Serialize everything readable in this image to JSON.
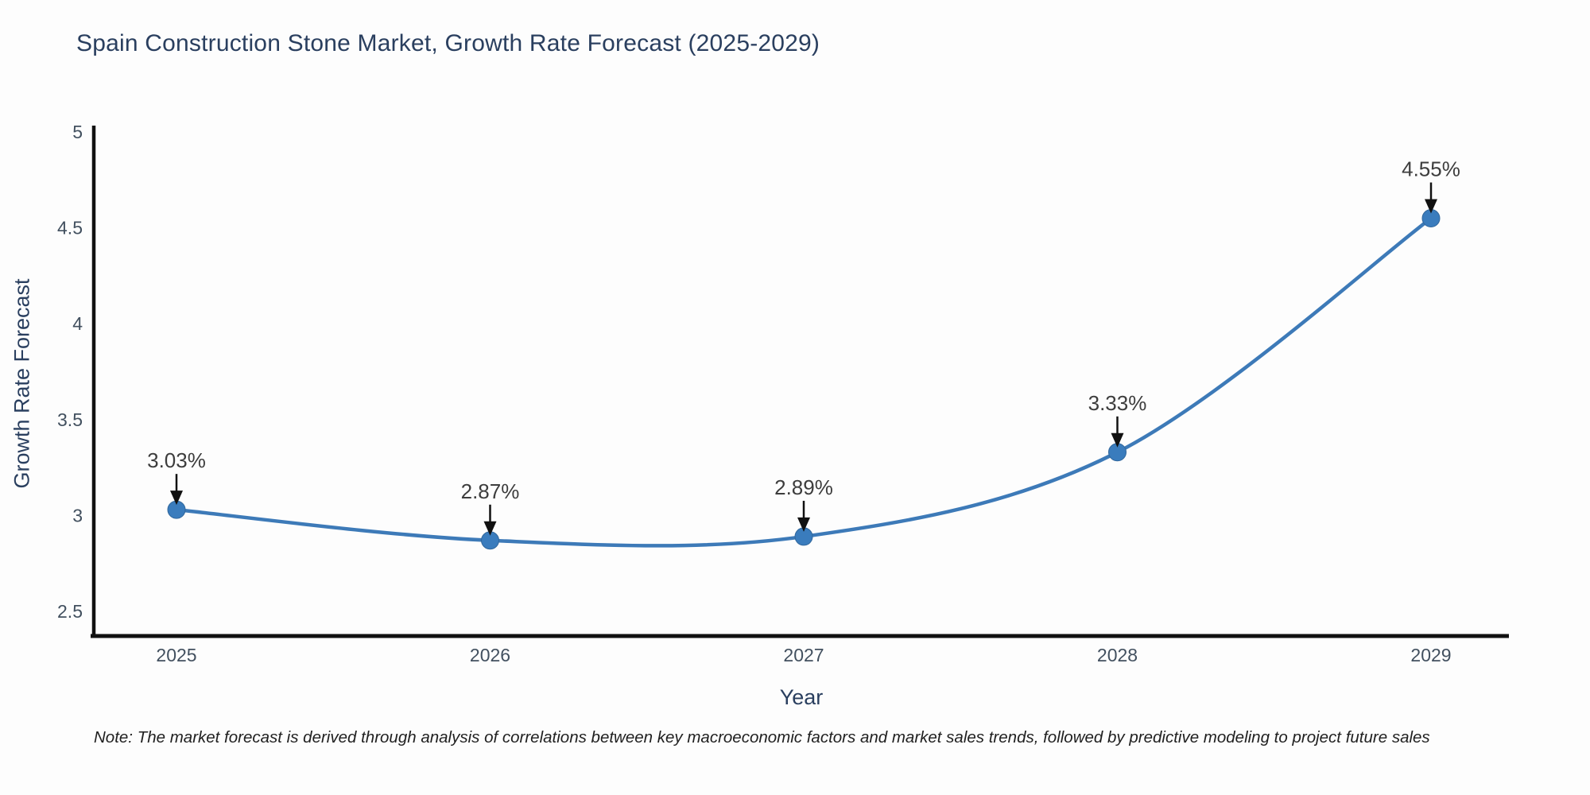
{
  "header": {
    "title": "Spain Construction Stone Market, Growth Rate Forecast (2025-2029)"
  },
  "chart_data": {
    "type": "line",
    "title": "Spain Construction Stone Market, Growth Rate Forecast (2025-2029)",
    "xlabel": "Year",
    "ylabel": "Growth Rate Forecast",
    "x": [
      2025,
      2026,
      2027,
      2028,
      2029
    ],
    "series": [
      {
        "name": "Growth Rate Forecast",
        "values": [
          3.03,
          2.87,
          2.89,
          3.33,
          4.55
        ]
      }
    ],
    "point_labels": [
      "3.03%",
      "2.87%",
      "2.89%",
      "3.33%",
      "4.55%"
    ],
    "ylim": [
      2.5,
      5
    ],
    "yticks": [
      2.5,
      3,
      3.5,
      4,
      4.5,
      5
    ],
    "ytick_labels": [
      "2.5",
      "3",
      "3.5",
      "4",
      "4.5",
      "5"
    ],
    "xtick_labels": [
      "2025",
      "2026",
      "2027",
      "2028",
      "2029"
    ],
    "grid": false,
    "legend": "none",
    "line_color": "#3d7ab8",
    "marker_color": "#3a7cbd",
    "marker_edge_color": "#31679c",
    "axis_color": "#111111",
    "annotation_color": "#3d3d3d",
    "arrow_color": "#111111",
    "line_shape": "spline"
  },
  "footnote": {
    "text": "Note: The market forecast is derived through analysis of correlations between key macroeconomic factors and market sales trends, followed by predictive modeling to project future sales"
  }
}
